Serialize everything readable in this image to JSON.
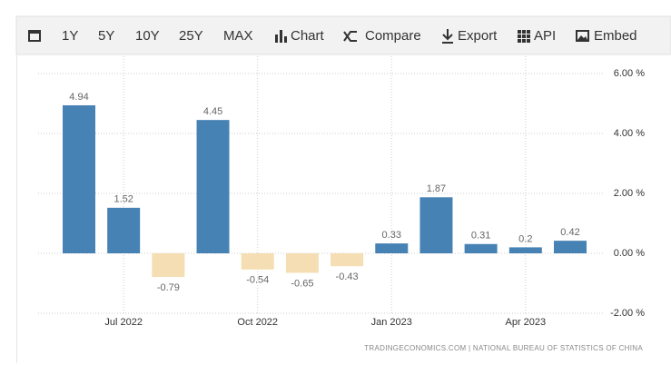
{
  "toolbar": {
    "items": [
      "1Y",
      "5Y",
      "10Y",
      "25Y",
      "MAX",
      "Chart",
      "Compare",
      "Export",
      "API",
      "Embed"
    ]
  },
  "chart_data": {
    "type": "bar",
    "categories": [
      null,
      "Jul 2022",
      null,
      null,
      "Oct 2022",
      null,
      null,
      "Jan 2023",
      null,
      null,
      "Apr 2023",
      null
    ],
    "values": [
      4.94,
      1.52,
      -0.79,
      4.45,
      -0.54,
      -0.65,
      -0.43,
      0.33,
      1.87,
      0.31,
      0.2,
      0.42
    ],
    "color": "#4682b4",
    "negative_color": "#f5deb3",
    "ylim": [
      -2,
      6
    ],
    "yticks": [
      {
        "value": 6,
        "label": "6.00 %"
      },
      {
        "value": 4,
        "label": "4.00 %"
      },
      {
        "value": 2,
        "label": "2.00 %"
      },
      {
        "value": 0,
        "label": "0.00 %"
      },
      {
        "value": -2,
        "label": "-2.00 %"
      }
    ],
    "grid": true,
    "source": "TRADINGECONOMICS.COM | NATIONAL BUREAU OF STATISTICS OF CHINA"
  }
}
